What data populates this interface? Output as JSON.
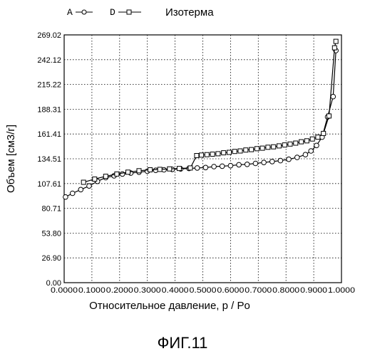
{
  "chart_data": {
    "type": "line",
    "title": "Изотерма",
    "xlabel": "Относительное давление, p / Po",
    "ylabel": "Объем [см3/г]",
    "xlim": [
      0.0,
      1.0
    ],
    "ylim": [
      0.0,
      269.02
    ],
    "x_ticks": [
      "0.0000",
      "0.1000",
      "0.2000",
      "0.3000",
      "0.4000",
      "0.5000",
      "0.6000",
      "0.7000",
      "0.8000",
      "0.9000",
      "1.0000"
    ],
    "y_ticks": [
      "0.00",
      "26.90",
      "53.80",
      "80.71",
      "107.61",
      "134.51",
      "161.41",
      "188.31",
      "215.22",
      "242.12",
      "269.02"
    ],
    "grid": true,
    "legend_position": "top-left",
    "series": [
      {
        "name": "A",
        "marker": "circle",
        "points": [
          [
            0.005,
            93
          ],
          [
            0.03,
            97
          ],
          [
            0.06,
            101
          ],
          [
            0.09,
            105
          ],
          [
            0.12,
            110
          ],
          [
            0.15,
            114
          ],
          [
            0.18,
            116
          ],
          [
            0.21,
            118
          ],
          [
            0.24,
            119
          ],
          [
            0.27,
            120
          ],
          [
            0.3,
            121
          ],
          [
            0.33,
            122
          ],
          [
            0.36,
            122.5
          ],
          [
            0.39,
            123
          ],
          [
            0.42,
            123.5
          ],
          [
            0.45,
            124
          ],
          [
            0.48,
            124.5
          ],
          [
            0.51,
            125
          ],
          [
            0.54,
            126
          ],
          [
            0.57,
            126.5
          ],
          [
            0.6,
            127
          ],
          [
            0.63,
            128
          ],
          [
            0.66,
            128.5
          ],
          [
            0.69,
            129.5
          ],
          [
            0.72,
            130.5
          ],
          [
            0.75,
            131.5
          ],
          [
            0.78,
            132.5
          ],
          [
            0.81,
            134
          ],
          [
            0.84,
            136
          ],
          [
            0.87,
            139
          ],
          [
            0.89,
            143
          ],
          [
            0.91,
            149
          ],
          [
            0.93,
            158
          ],
          [
            0.95,
            180
          ],
          [
            0.97,
            202
          ],
          [
            0.98,
            252
          ]
        ]
      },
      {
        "name": "D",
        "marker": "square",
        "points": [
          [
            0.98,
            262
          ],
          [
            0.975,
            255
          ],
          [
            0.955,
            181
          ],
          [
            0.935,
            162
          ],
          [
            0.915,
            158
          ],
          [
            0.895,
            156
          ],
          [
            0.875,
            154
          ],
          [
            0.855,
            153
          ],
          [
            0.835,
            151.5
          ],
          [
            0.815,
            150.5
          ],
          [
            0.795,
            149.5
          ],
          [
            0.775,
            148.5
          ],
          [
            0.755,
            147.5
          ],
          [
            0.735,
            147
          ],
          [
            0.715,
            146
          ],
          [
            0.695,
            145.5
          ],
          [
            0.675,
            144.5
          ],
          [
            0.655,
            144
          ],
          [
            0.635,
            143
          ],
          [
            0.615,
            142.5
          ],
          [
            0.595,
            141.5
          ],
          [
            0.575,
            141
          ],
          [
            0.555,
            140
          ],
          [
            0.535,
            139.5
          ],
          [
            0.515,
            139
          ],
          [
            0.495,
            138.5
          ],
          [
            0.478,
            138
          ],
          [
            0.455,
            124.5
          ],
          [
            0.415,
            124
          ],
          [
            0.38,
            123.5
          ],
          [
            0.345,
            123
          ],
          [
            0.31,
            122.5
          ],
          [
            0.27,
            121.5
          ],
          [
            0.23,
            120
          ],
          [
            0.19,
            118
          ],
          [
            0.15,
            115.5
          ],
          [
            0.11,
            112.5
          ],
          [
            0.07,
            109
          ]
        ]
      }
    ],
    "legend": [
      {
        "label": "A",
        "marker": "circle"
      },
      {
        "label": "D",
        "marker": "square"
      }
    ]
  },
  "figure_label": "ФИГ.11"
}
